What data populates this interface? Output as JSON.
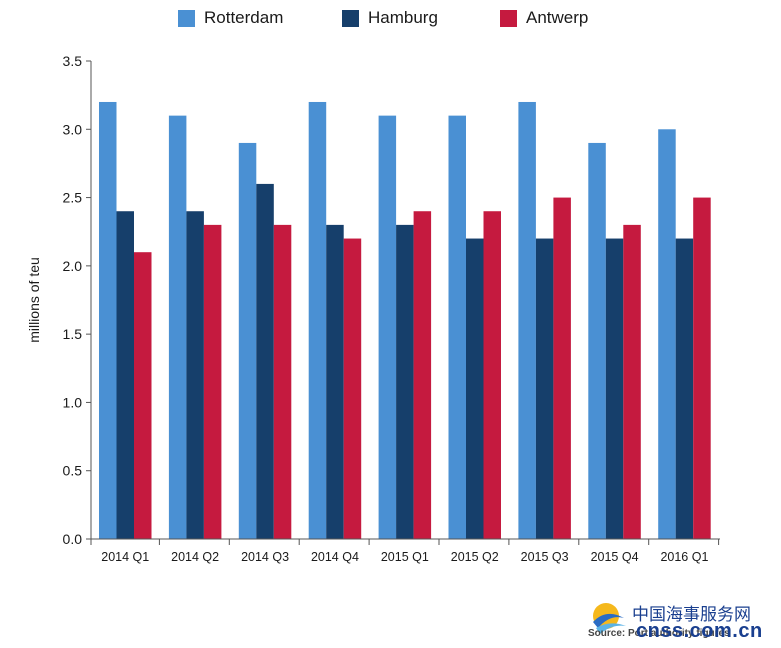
{
  "chart_data": {
    "type": "bar",
    "title": "",
    "xlabel": "",
    "ylabel": "millions of teu",
    "ylim": [
      0,
      3.5
    ],
    "yticks": [
      "0.0",
      "0.5",
      "1.0",
      "1.5",
      "2.0",
      "2.5",
      "3.0",
      "3.5"
    ],
    "categories": [
      "2014 Q1",
      "2014 Q2",
      "2014 Q3",
      "2014 Q4",
      "2015 Q1",
      "2015 Q2",
      "2015 Q3",
      "2015 Q4",
      "2016 Q1"
    ],
    "series": [
      {
        "name": "Rotterdam",
        "color": "#4a90d3",
        "values": [
          3.2,
          3.1,
          2.9,
          3.2,
          3.1,
          3.1,
          3.2,
          2.9,
          3.0
        ]
      },
      {
        "name": "Hamburg",
        "color": "#163f6b",
        "values": [
          2.4,
          2.4,
          2.6,
          2.3,
          2.3,
          2.2,
          2.2,
          2.2,
          2.2
        ]
      },
      {
        "name": "Antwerp",
        "color": "#c51a3f",
        "values": [
          2.1,
          2.3,
          2.3,
          2.2,
          2.4,
          2.4,
          2.5,
          2.3,
          2.5
        ]
      }
    ],
    "legend_position": "top",
    "grid": false
  },
  "watermark": {
    "source_text": "Source: Port authority figures",
    "site_cn": "中国海事服务网",
    "site_en": "cnss.com.cn"
  }
}
